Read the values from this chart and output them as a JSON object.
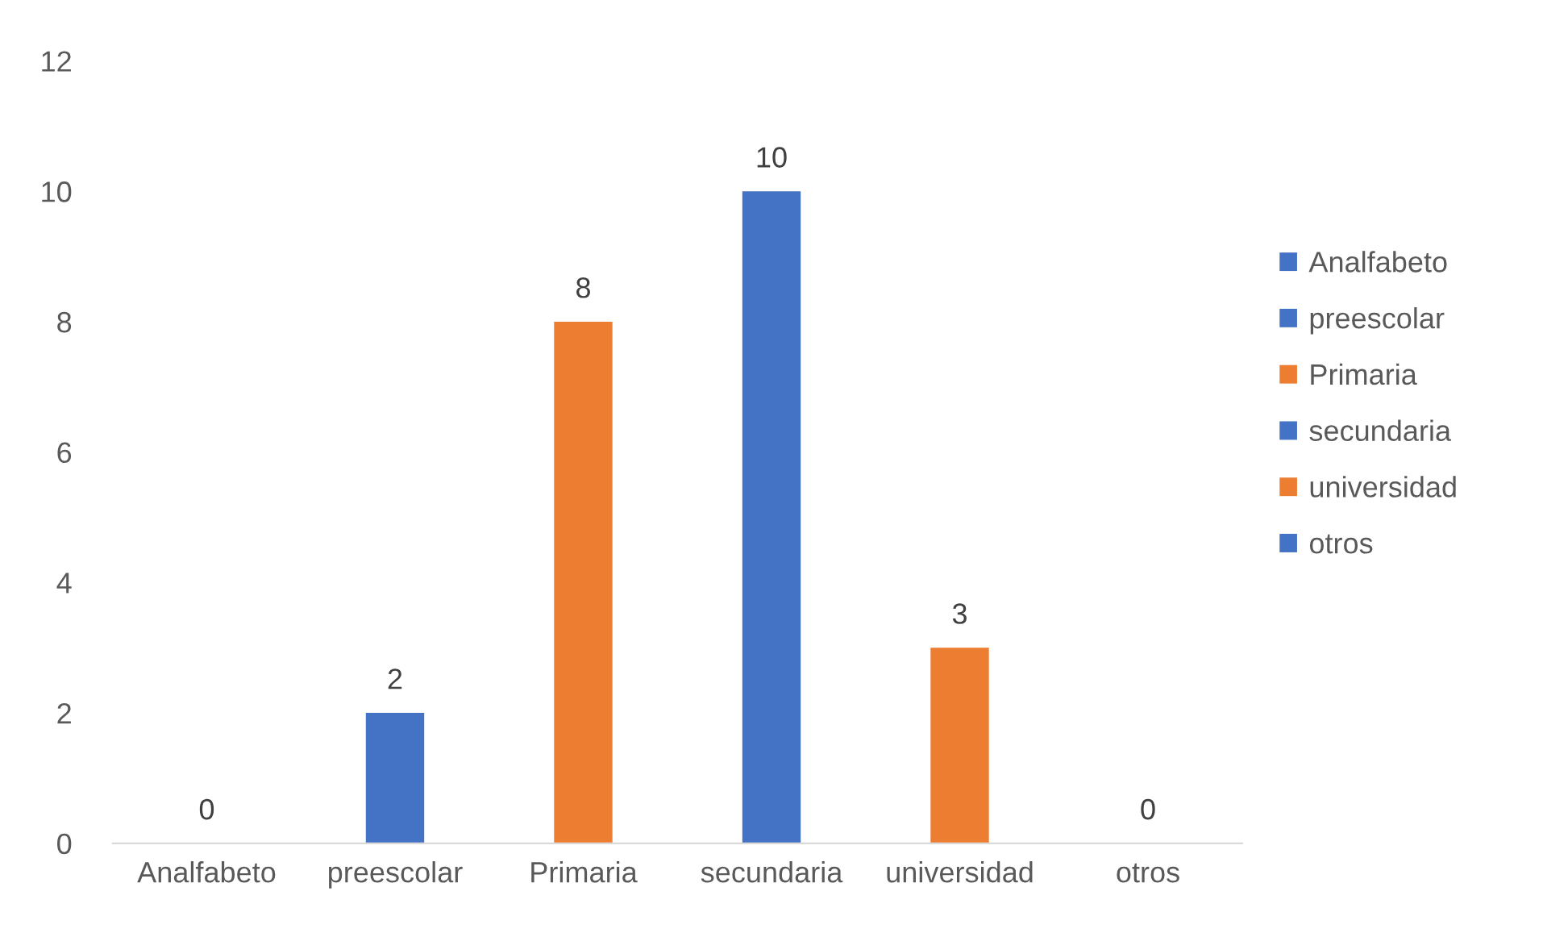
{
  "chart_data": {
    "type": "bar",
    "categories": [
      "Analfabeto",
      "preescolar",
      "Primaria",
      "secundaria",
      "universidad",
      "otros"
    ],
    "series": [
      {
        "name": "Analfabeto",
        "color": "#4472c4",
        "values": [
          0,
          null,
          null,
          null,
          null,
          null
        ]
      },
      {
        "name": "preescolar",
        "color": "#4472c4",
        "values": [
          null,
          2,
          null,
          null,
          null,
          null
        ]
      },
      {
        "name": "Primaria",
        "color": "#ed7d31",
        "values": [
          null,
          null,
          8,
          null,
          null,
          null
        ]
      },
      {
        "name": "secundaria",
        "color": "#4472c4",
        "values": [
          null,
          null,
          null,
          10,
          null,
          null
        ]
      },
      {
        "name": "universidad",
        "color": "#ed7d31",
        "values": [
          null,
          null,
          null,
          null,
          3,
          null
        ]
      },
      {
        "name": "otros",
        "color": "#4472c4",
        "values": [
          null,
          null,
          null,
          null,
          null,
          0
        ]
      }
    ],
    "ylim": [
      0,
      12
    ],
    "yticks": [
      0,
      2,
      4,
      6,
      8,
      10,
      12
    ],
    "data_labels": true,
    "legend": "right",
    "grid": false
  }
}
